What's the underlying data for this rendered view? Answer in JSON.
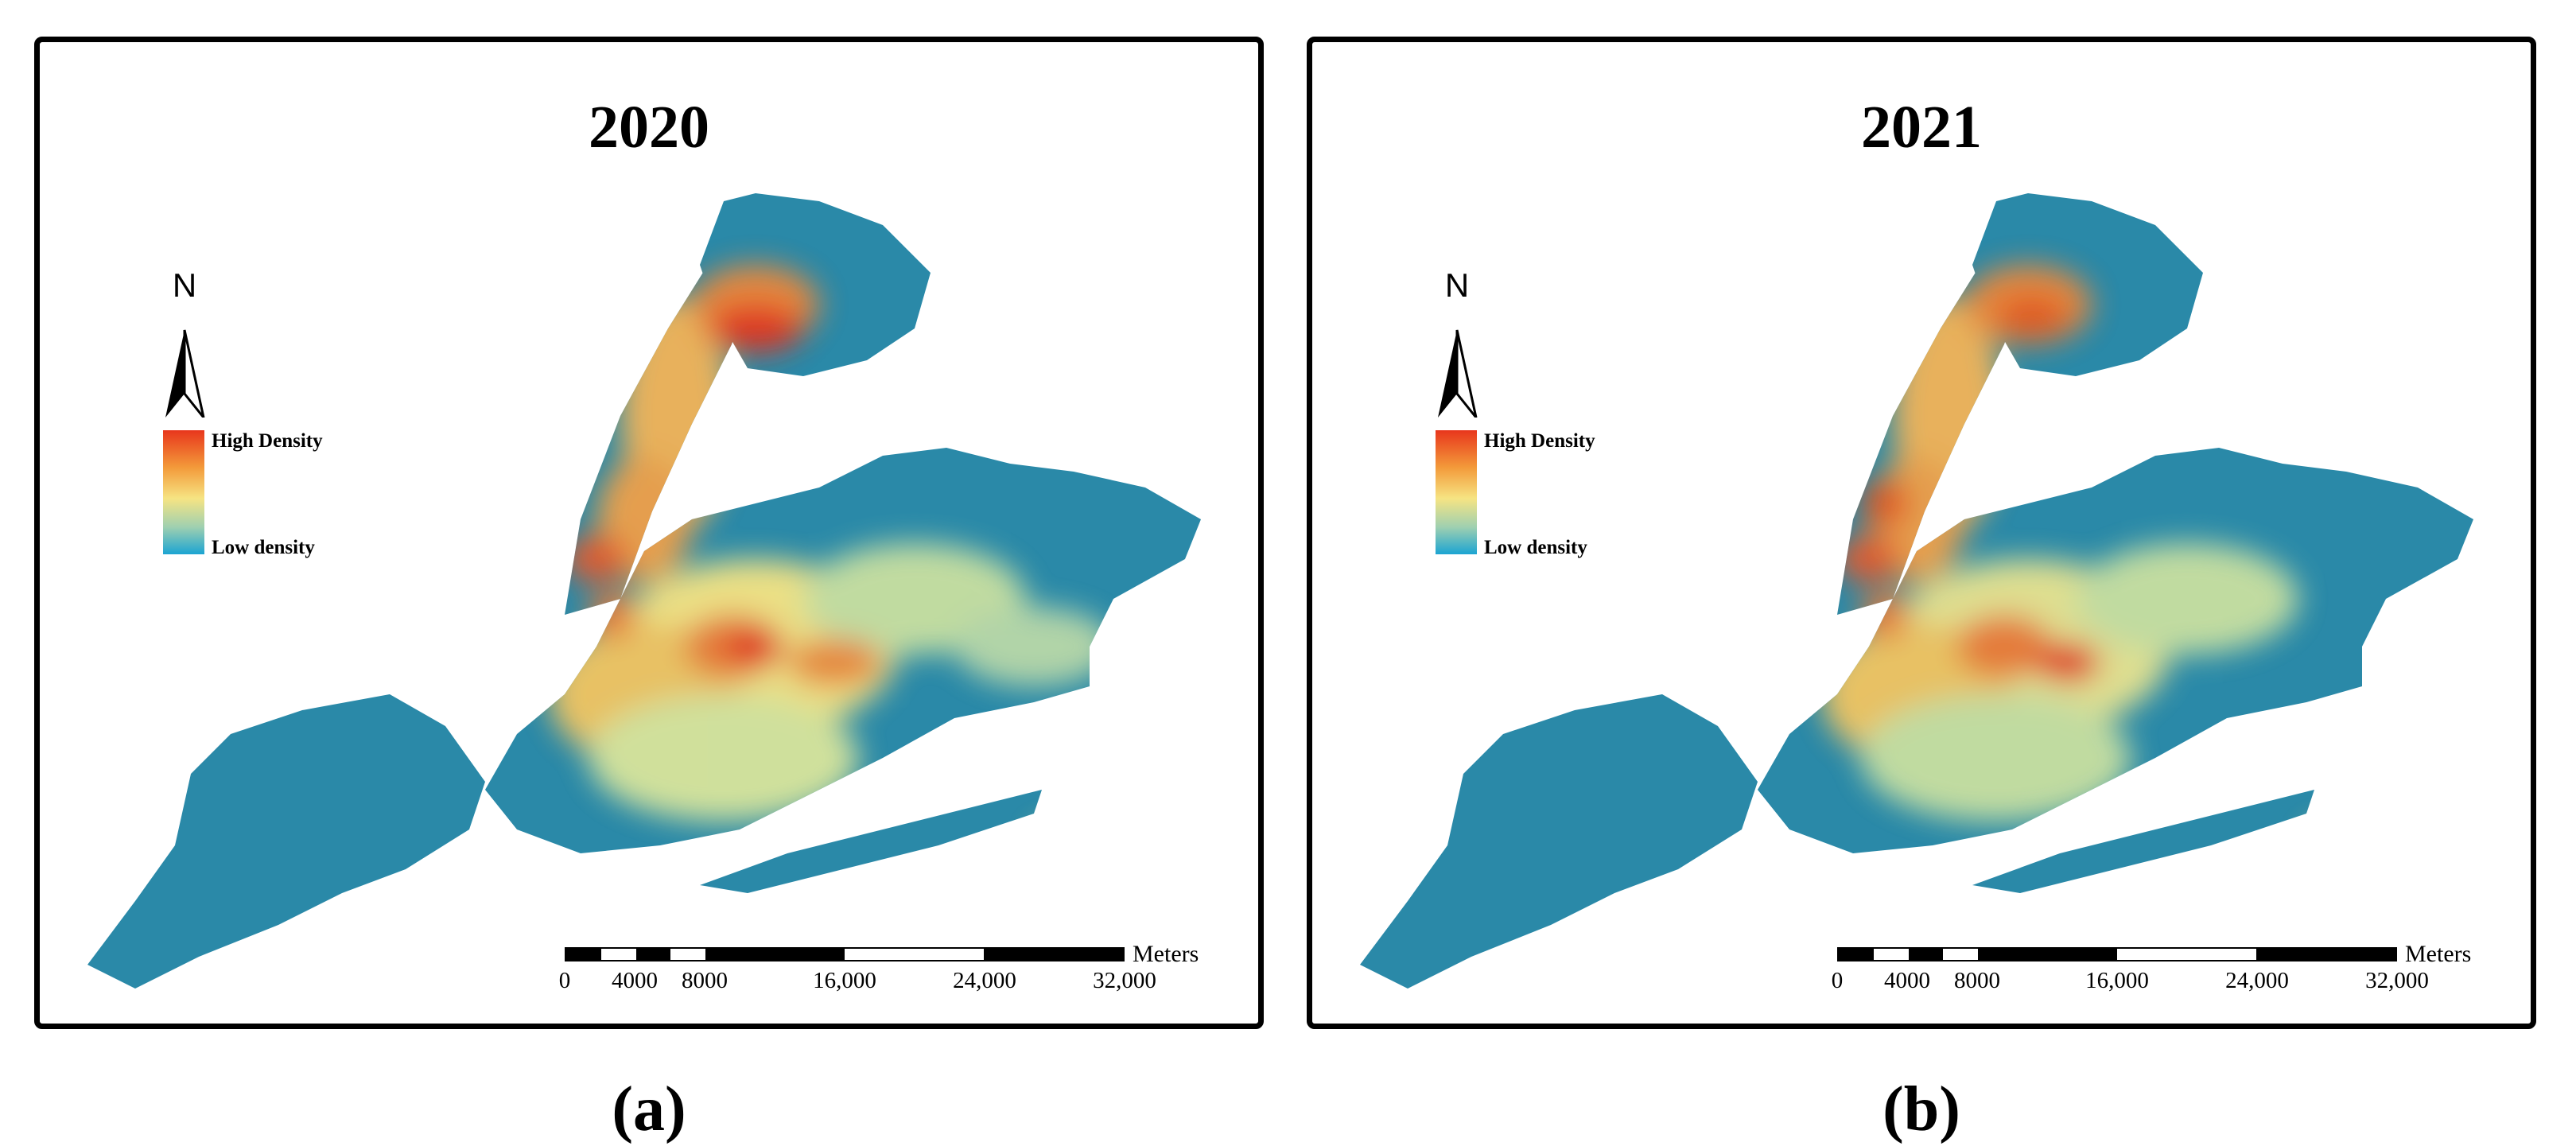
{
  "panels": [
    {
      "title": "2020",
      "caption": "(a)",
      "north": "N",
      "legend": {
        "high": "High Density",
        "low": "Low density"
      },
      "scale": {
        "unit": "Meters",
        "ticks": [
          "0",
          "4000",
          "8000",
          "16,000",
          "24,000",
          "32,000"
        ]
      },
      "colors": {
        "high": "#e8361c",
        "mid": "#f6e483",
        "low": "#1ba4d2",
        "base": "#2a89a8"
      }
    },
    {
      "title": "2021",
      "caption": "(b)",
      "north": "N",
      "legend": {
        "high": "High Density",
        "low": "Low density"
      },
      "scale": {
        "unit": "Meters",
        "ticks": [
          "0",
          "4000",
          "8000",
          "16,000",
          "24,000",
          "32,000"
        ]
      },
      "colors": {
        "high": "#e8361c",
        "mid": "#f6e483",
        "low": "#1ba4d2",
        "base": "#2a89a8"
      }
    }
  ]
}
